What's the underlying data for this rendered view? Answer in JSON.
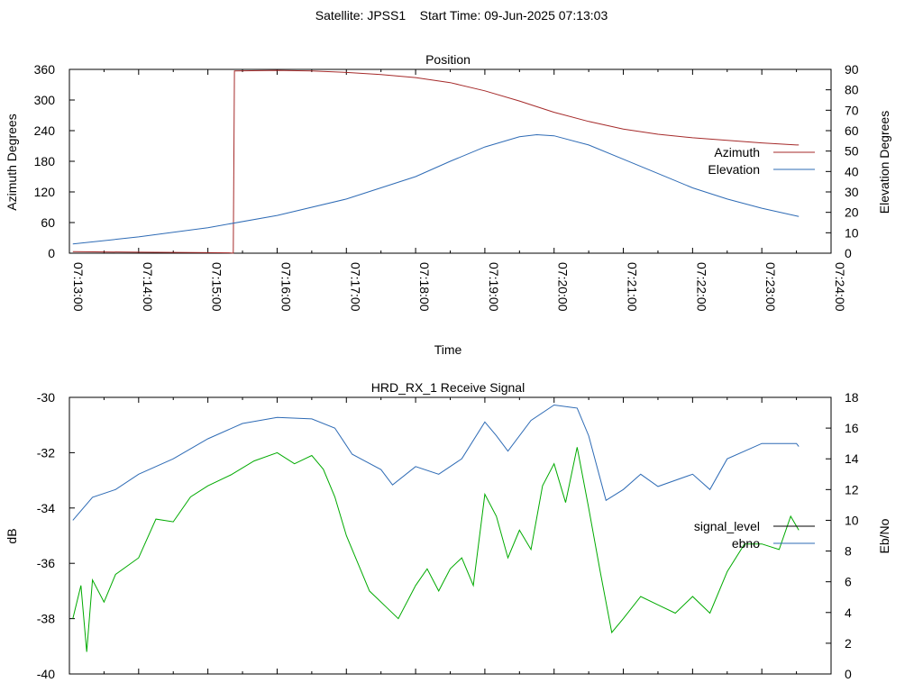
{
  "header": {
    "title": "Satellite: JPSS1    Start Time: 09-Jun-2025 07:13:03"
  },
  "chart_data": [
    {
      "type": "line",
      "title": "Position",
      "xlabel": "Time",
      "ylabel": "Azimuth Degrees",
      "y2label": "Elevation Degrees",
      "x_tick_labels": [
        "07:13:00",
        "07:14:00",
        "07:15:00",
        "07:16:00",
        "07:17:00",
        "07:18:00",
        "07:19:00",
        "07:20:00",
        "07:21:00",
        "07:22:00",
        "07:23:00",
        "07:24:00"
      ],
      "xlim": [
        "07:13:00",
        "07:24:00"
      ],
      "ylim": [
        0,
        360
      ],
      "y_ticks": [
        0,
        60,
        120,
        180,
        240,
        300,
        360
      ],
      "y2lim": [
        0,
        90
      ],
      "y2_ticks": [
        0,
        10,
        20,
        30,
        40,
        50,
        60,
        70,
        80,
        90
      ],
      "grid": false,
      "legend_position": "right",
      "series": [
        {
          "name": "Azimuth",
          "axis": "left",
          "color": "#a52a2a",
          "points": [
            [
              "07:13:03",
              3
            ],
            [
              "07:14:00",
              2
            ],
            [
              "07:15:00",
              1
            ],
            [
              "07:15:20",
              0.5
            ],
            [
              "07:15:22",
              0
            ],
            [
              "07:15:23",
              357
            ],
            [
              "07:16:00",
              358
            ],
            [
              "07:16:30",
              357
            ],
            [
              "07:17:00",
              354
            ],
            [
              "07:17:30",
              350
            ],
            [
              "07:18:00",
              344
            ],
            [
              "07:18:30",
              334
            ],
            [
              "07:19:00",
              318
            ],
            [
              "07:19:30",
              298
            ],
            [
              "07:20:00",
              276
            ],
            [
              "07:20:30",
              258
            ],
            [
              "07:21:00",
              243
            ],
            [
              "07:21:30",
              233
            ],
            [
              "07:22:00",
              226
            ],
            [
              "07:22:30",
              221
            ],
            [
              "07:23:00",
              216
            ],
            [
              "07:23:30",
              212
            ],
            [
              "07:23:32",
              212
            ]
          ]
        },
        {
          "name": "Elevation",
          "axis": "right",
          "color": "#2e6bb5",
          "points": [
            [
              "07:13:03",
              4.5
            ],
            [
              "07:14:00",
              8
            ],
            [
              "07:15:00",
              12.5
            ],
            [
              "07:16:00",
              18.5
            ],
            [
              "07:17:00",
              26.5
            ],
            [
              "07:18:00",
              37.5
            ],
            [
              "07:18:30",
              45
            ],
            [
              "07:19:00",
              52
            ],
            [
              "07:19:30",
              57
            ],
            [
              "07:19:45",
              58
            ],
            [
              "07:20:00",
              57.5
            ],
            [
              "07:20:30",
              53
            ],
            [
              "07:21:00",
              46
            ],
            [
              "07:21:30",
              39
            ],
            [
              "07:22:00",
              32
            ],
            [
              "07:22:30",
              26.5
            ],
            [
              "07:23:00",
              22
            ],
            [
              "07:23:32",
              18
            ]
          ]
        }
      ]
    },
    {
      "type": "line",
      "title": "HRD_RX_1 Receive Signal",
      "ylabel": "dB",
      "y2label": "Eb/No",
      "ylim": [
        -40,
        -30
      ],
      "y_ticks": [
        -40,
        -38,
        -36,
        -34,
        -32,
        -30
      ],
      "y2lim": [
        0,
        18
      ],
      "y2_ticks": [
        0,
        2,
        4,
        6,
        8,
        10,
        12,
        14,
        16,
        18
      ],
      "grid": false,
      "legend_position": "right",
      "series": [
        {
          "name": "signal_level",
          "axis": "left",
          "color": "#000000",
          "points": []
        },
        {
          "name": "ebno",
          "axis": "right",
          "color": "#2e6bb5",
          "points": [
            [
              "07:13:03",
              10
            ],
            [
              "07:13:20",
              11.5
            ],
            [
              "07:13:40",
              12
            ],
            [
              "07:14:00",
              13
            ],
            [
              "07:14:30",
              14
            ],
            [
              "07:15:00",
              15.3
            ],
            [
              "07:15:30",
              16.3
            ],
            [
              "07:16:00",
              16.7
            ],
            [
              "07:16:30",
              16.6
            ],
            [
              "07:16:50",
              16
            ],
            [
              "07:17:05",
              14.3
            ],
            [
              "07:17:30",
              13.3
            ],
            [
              "07:17:40",
              12.3
            ],
            [
              "07:18:00",
              13.5
            ],
            [
              "07:18:20",
              13
            ],
            [
              "07:18:40",
              14
            ],
            [
              "07:19:00",
              16.4
            ],
            [
              "07:19:10",
              15.5
            ],
            [
              "07:19:20",
              14.5
            ],
            [
              "07:19:40",
              16.5
            ],
            [
              "07:20:00",
              17.5
            ],
            [
              "07:20:20",
              17.3
            ],
            [
              "07:20:30",
              15.5
            ],
            [
              "07:20:45",
              11.3
            ],
            [
              "07:21:00",
              12
            ],
            [
              "07:21:15",
              13
            ],
            [
              "07:21:30",
              12.2
            ],
            [
              "07:22:00",
              13
            ],
            [
              "07:22:15",
              12
            ],
            [
              "07:22:30",
              14
            ],
            [
              "07:23:00",
              15
            ],
            [
              "07:23:30",
              15
            ],
            [
              "07:23:32",
              14.8
            ]
          ]
        },
        {
          "name": "",
          "axis": "left",
          "color": "#00aa00",
          "points": [
            [
              "07:13:03",
              -38
            ],
            [
              "07:13:10",
              -36.8
            ],
            [
              "07:13:15",
              -39.2
            ],
            [
              "07:13:20",
              -36.6
            ],
            [
              "07:13:30",
              -37.4
            ],
            [
              "07:13:40",
              -36.4
            ],
            [
              "07:14:00",
              -35.8
            ],
            [
              "07:14:15",
              -34.4
            ],
            [
              "07:14:30",
              -34.5
            ],
            [
              "07:14:45",
              -33.6
            ],
            [
              "07:15:00",
              -33.2
            ],
            [
              "07:15:20",
              -32.8
            ],
            [
              "07:15:40",
              -32.3
            ],
            [
              "07:16:00",
              -32
            ],
            [
              "07:16:15",
              -32.4
            ],
            [
              "07:16:30",
              -32.1
            ],
            [
              "07:16:40",
              -32.6
            ],
            [
              "07:16:50",
              -33.6
            ],
            [
              "07:17:00",
              -35
            ],
            [
              "07:17:10",
              -36
            ],
            [
              "07:17:20",
              -37
            ],
            [
              "07:17:35",
              -37.6
            ],
            [
              "07:17:45",
              -38
            ],
            [
              "07:18:00",
              -36.8
            ],
            [
              "07:18:10",
              -36.2
            ],
            [
              "07:18:20",
              -37
            ],
            [
              "07:18:30",
              -36.2
            ],
            [
              "07:18:40",
              -35.8
            ],
            [
              "07:18:50",
              -36.8
            ],
            [
              "07:19:00",
              -33.5
            ],
            [
              "07:19:10",
              -34.3
            ],
            [
              "07:19:20",
              -35.8
            ],
            [
              "07:19:30",
              -34.8
            ],
            [
              "07:19:40",
              -35.5
            ],
            [
              "07:19:50",
              -33.2
            ],
            [
              "07:20:00",
              -32.4
            ],
            [
              "07:20:10",
              -33.8
            ],
            [
              "07:20:20",
              -31.8
            ],
            [
              "07:20:30",
              -34
            ],
            [
              "07:20:40",
              -36.3
            ],
            [
              "07:20:50",
              -38.5
            ],
            [
              "07:21:00",
              -38
            ],
            [
              "07:21:15",
              -37.2
            ],
            [
              "07:21:30",
              -37.5
            ],
            [
              "07:21:45",
              -37.8
            ],
            [
              "07:22:00",
              -37.2
            ],
            [
              "07:22:15",
              -37.8
            ],
            [
              "07:22:30",
              -36.3
            ],
            [
              "07:22:45",
              -35.3
            ],
            [
              "07:23:00",
              -35.3
            ],
            [
              "07:23:15",
              -35.5
            ],
            [
              "07:23:25",
              -34.3
            ],
            [
              "07:23:32",
              -34.8
            ]
          ]
        }
      ]
    }
  ]
}
